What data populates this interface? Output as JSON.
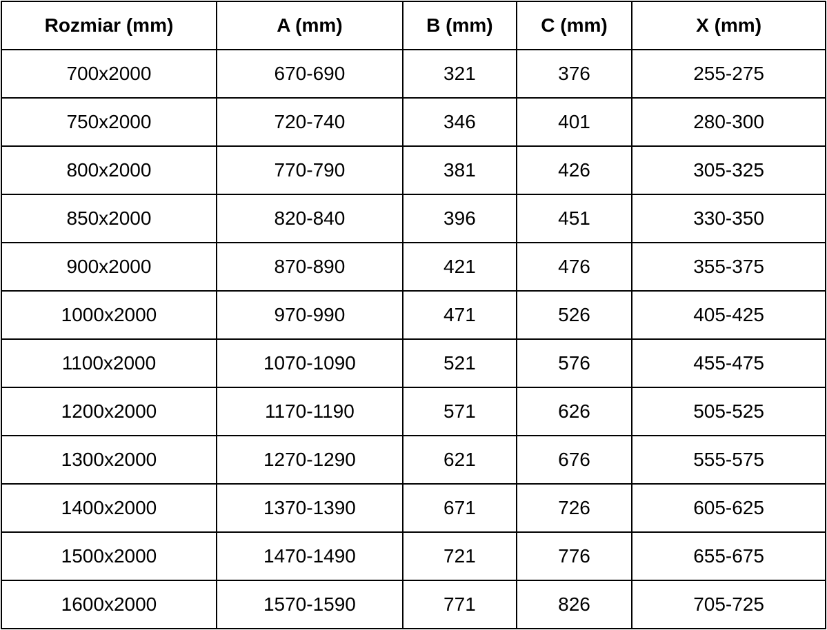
{
  "table": {
    "columns": [
      {
        "label": "Rozmiar (mm)"
      },
      {
        "label": "A (mm)"
      },
      {
        "label": "B (mm)"
      },
      {
        "label": "C (mm)"
      },
      {
        "label": "X (mm)"
      }
    ],
    "rows": [
      {
        "cells": [
          "700x2000",
          "670-690",
          "321",
          "376",
          "255-275"
        ]
      },
      {
        "cells": [
          "750x2000",
          "720-740",
          "346",
          "401",
          "280-300"
        ]
      },
      {
        "cells": [
          "800x2000",
          "770-790",
          "381",
          "426",
          "305-325"
        ]
      },
      {
        "cells": [
          "850x2000",
          "820-840",
          "396",
          "451",
          "330-350"
        ]
      },
      {
        "cells": [
          "900x2000",
          "870-890",
          "421",
          "476",
          "355-375"
        ]
      },
      {
        "cells": [
          "1000x2000",
          "970-990",
          "471",
          "526",
          "405-425"
        ]
      },
      {
        "cells": [
          "1100x2000",
          "1070-1090",
          "521",
          "576",
          "455-475"
        ]
      },
      {
        "cells": [
          "1200x2000",
          "1170-1190",
          "571",
          "626",
          "505-525"
        ]
      },
      {
        "cells": [
          "1300x2000",
          "1270-1290",
          "621",
          "676",
          "555-575"
        ]
      },
      {
        "cells": [
          "1400x2000",
          "1370-1390",
          "671",
          "726",
          "605-625"
        ]
      },
      {
        "cells": [
          "1500x2000",
          "1470-1490",
          "721",
          "776",
          "655-675"
        ]
      },
      {
        "cells": [
          "1600x2000",
          "1570-1590",
          "771",
          "826",
          "705-725"
        ]
      }
    ],
    "colors": {
      "border": "#000000",
      "background": "#ffffff",
      "text": "#000000"
    }
  }
}
